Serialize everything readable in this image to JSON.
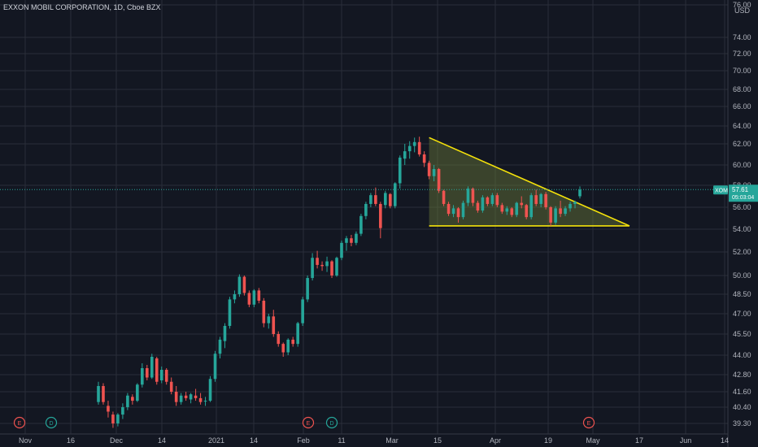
{
  "chart_data": {
    "type": "candlestick",
    "title": "EXXON MOBIL CORPORATION, 1D, Cboe BZX",
    "currency": "USD",
    "colors": {
      "background": "#131722",
      "grid": "#2a2e39",
      "up": "#26a69a",
      "down": "#ef5350",
      "pattern_line": "#f5e20a",
      "pattern_fill": "#6b7a3a",
      "last_price": "#26a69a",
      "event_earnings": "#ef5350",
      "event_dividend": "#26a69a"
    },
    "y_axis": {
      "range": [
        38.5,
        79
      ],
      "ticks": [
        "39.30",
        "40.40",
        "41.60",
        "42.80",
        "44.00",
        "45.50",
        "47.00",
        "48.50",
        "50.00",
        "52.00",
        "54.00",
        "56.00",
        "58.00",
        "60.00",
        "62.00",
        "64.00",
        "66.00",
        "68.00",
        "70.00",
        "72.00",
        "74.00",
        "76.00"
      ]
    },
    "x_axis": {
      "ticks": [
        "Nov",
        "16",
        "Dec",
        "14",
        "2021",
        "14",
        "Feb",
        "11",
        "Mar",
        "15",
        "Apr",
        "19",
        "May",
        "17",
        "Jun",
        "14"
      ]
    },
    "last_price": {
      "symbol": "XOM",
      "value": "57.61",
      "countdown": "05:03:04"
    },
    "candles": [
      [
        40.8,
        42.3,
        40.6,
        42.0
      ],
      [
        42.0,
        42.2,
        40.6,
        40.8
      ],
      [
        40.5,
        40.9,
        39.7,
        40.1
      ],
      [
        39.9,
        40.1,
        39.0,
        39.3
      ],
      [
        39.3,
        40.0,
        39.1,
        39.9
      ],
      [
        39.9,
        40.7,
        39.6,
        40.4
      ],
      [
        40.4,
        41.5,
        40.2,
        41.3
      ],
      [
        41.2,
        41.4,
        40.6,
        40.9
      ],
      [
        40.9,
        42.2,
        40.8,
        42.1
      ],
      [
        42.1,
        43.5,
        41.9,
        43.2
      ],
      [
        43.2,
        43.4,
        42.4,
        42.6
      ],
      [
        42.6,
        44.1,
        42.5,
        43.9
      ],
      [
        43.8,
        43.9,
        42.1,
        42.3
      ],
      [
        42.4,
        43.3,
        42.2,
        43.1
      ],
      [
        43.1,
        43.2,
        42.1,
        42.3
      ],
      [
        42.3,
        42.6,
        41.4,
        41.6
      ],
      [
        41.6,
        42.0,
        40.5,
        40.8
      ],
      [
        40.8,
        41.5,
        40.6,
        41.3
      ],
      [
        41.3,
        41.6,
        40.9,
        41.1
      ],
      [
        41.0,
        41.5,
        40.7,
        41.4
      ],
      [
        41.3,
        41.8,
        40.9,
        41.1
      ],
      [
        41.1,
        41.5,
        40.6,
        40.8
      ],
      [
        40.9,
        41.2,
        40.5,
        40.9
      ],
      [
        40.9,
        42.7,
        40.8,
        42.5
      ],
      [
        42.5,
        44.3,
        42.3,
        44.1
      ],
      [
        44.1,
        45.3,
        43.8,
        45.1
      ],
      [
        45.0,
        46.3,
        44.5,
        46.1
      ],
      [
        46.1,
        48.3,
        45.9,
        48.1
      ],
      [
        48.1,
        48.8,
        47.8,
        48.5
      ],
      [
        48.5,
        50.1,
        48.3,
        49.9
      ],
      [
        49.9,
        50.0,
        48.4,
        48.6
      ],
      [
        48.6,
        48.8,
        47.5,
        47.7
      ],
      [
        47.7,
        48.9,
        47.5,
        48.8
      ],
      [
        48.8,
        49.0,
        47.8,
        48.0
      ],
      [
        48.0,
        48.2,
        46.0,
        46.3
      ],
      [
        46.3,
        47.0,
        45.9,
        46.8
      ],
      [
        46.8,
        47.3,
        45.3,
        45.5
      ],
      [
        45.5,
        45.7,
        44.6,
        44.8
      ],
      [
        44.8,
        44.9,
        43.9,
        44.2
      ],
      [
        44.2,
        45.2,
        44.0,
        45.1
      ],
      [
        45.1,
        45.3,
        44.6,
        44.8
      ],
      [
        44.8,
        46.4,
        44.6,
        46.3
      ],
      [
        46.3,
        48.3,
        46.1,
        48.1
      ],
      [
        48.1,
        50.0,
        47.9,
        49.8
      ],
      [
        49.8,
        51.9,
        49.6,
        51.5
      ],
      [
        51.5,
        52.1,
        50.6,
        50.9
      ],
      [
        50.9,
        51.2,
        50.4,
        50.8
      ],
      [
        50.8,
        51.6,
        50.3,
        51.2
      ],
      [
        51.2,
        51.3,
        49.8,
        50.0
      ],
      [
        50.0,
        51.6,
        49.9,
        51.5
      ],
      [
        51.5,
        53.0,
        51.3,
        52.8
      ],
      [
        52.8,
        53.4,
        52.1,
        53.2
      ],
      [
        53.2,
        53.5,
        52.5,
        52.8
      ],
      [
        52.8,
        53.8,
        52.6,
        53.6
      ],
      [
        53.6,
        55.4,
        53.4,
        55.2
      ],
      [
        55.2,
        56.5,
        54.9,
        56.3
      ],
      [
        56.3,
        57.3,
        56.0,
        57.1
      ],
      [
        57.1,
        57.8,
        56.1,
        56.3
      ],
      [
        56.3,
        56.5,
        53.2,
        54.1
      ],
      [
        56.2,
        57.5,
        55.9,
        57.3
      ],
      [
        57.2,
        57.3,
        55.9,
        56.1
      ],
      [
        56.1,
        58.3,
        55.9,
        58.2
      ],
      [
        58.2,
        60.9,
        57.7,
        60.7
      ],
      [
        60.6,
        62.0,
        60.0,
        61.3
      ],
      [
        61.3,
        62.3,
        60.6,
        61.8
      ],
      [
        61.8,
        62.7,
        61.2,
        62.2
      ],
      [
        62.2,
        62.8,
        60.8,
        61.0
      ],
      [
        61.0,
        61.3,
        59.8,
        60.2
      ],
      [
        60.2,
        60.4,
        58.6,
        58.9
      ],
      [
        58.9,
        60.0,
        58.4,
        59.6
      ],
      [
        59.6,
        59.7,
        57.3,
        57.5
      ],
      [
        57.5,
        57.6,
        56.1,
        56.3
      ],
      [
        56.3,
        56.5,
        55.2,
        55.4
      ],
      [
        55.4,
        56.2,
        55.1,
        55.9
      ],
      [
        55.9,
        56.0,
        54.6,
        55.1
      ],
      [
        55.1,
        56.6,
        54.9,
        56.4
      ],
      [
        56.4,
        57.9,
        56.1,
        57.7
      ],
      [
        57.7,
        57.8,
        56.1,
        56.4
      ],
      [
        56.4,
        56.6,
        55.5,
        55.7
      ],
      [
        55.7,
        57.1,
        55.5,
        56.9
      ],
      [
        56.9,
        57.0,
        56.1,
        56.3
      ],
      [
        56.3,
        57.3,
        56.1,
        57.1
      ],
      [
        57.1,
        57.3,
        56.0,
        56.2
      ],
      [
        56.2,
        56.4,
        55.4,
        55.6
      ],
      [
        55.6,
        56.1,
        55.3,
        55.9
      ],
      [
        55.9,
        56.0,
        55.1,
        55.3
      ],
      [
        55.3,
        56.5,
        55.1,
        56.4
      ],
      [
        56.4,
        57.0,
        55.9,
        56.2
      ],
      [
        56.2,
        56.3,
        54.9,
        55.1
      ],
      [
        55.1,
        57.3,
        54.9,
        57.1
      ],
      [
        57.1,
        57.6,
        56.1,
        56.3
      ],
      [
        56.3,
        57.3,
        56.0,
        57.2
      ],
      [
        57.2,
        57.4,
        55.8,
        56.0
      ],
      [
        56.0,
        56.1,
        54.3,
        54.6
      ],
      [
        54.6,
        56.1,
        54.4,
        55.9
      ],
      [
        55.9,
        56.6,
        55.1,
        55.4
      ],
      [
        55.4,
        56.1,
        55.2,
        55.9
      ],
      [
        55.9,
        56.5,
        55.6,
        56.3
      ],
      [
        56.3,
        56.6,
        55.9,
        56.5
      ],
      [
        57.0,
        57.9,
        56.8,
        57.6
      ]
    ],
    "pattern": {
      "label": "descending triangle",
      "apex_high": [
        "Mar 11",
        62.7
      ],
      "base_start": [
        "Mar 11",
        54.3
      ],
      "base_end": [
        "May 12",
        54.3
      ]
    },
    "events": [
      {
        "letter": "E",
        "type": "earnings",
        "date": "Oct 30"
      },
      {
        "letter": "D",
        "type": "dividend",
        "date": "Nov 10"
      },
      {
        "letter": "E",
        "type": "earnings",
        "date": "Feb 2"
      },
      {
        "letter": "D",
        "type": "dividend",
        "date": "Feb 9"
      },
      {
        "letter": "E",
        "type": "earnings",
        "date": "Apr 30"
      }
    ]
  }
}
